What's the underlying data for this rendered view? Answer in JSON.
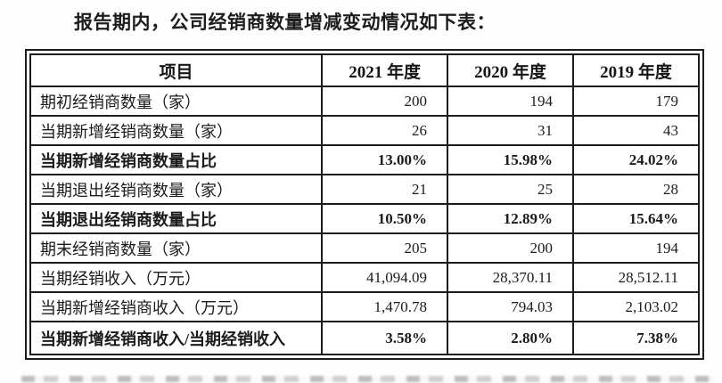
{
  "page": {
    "title": "报告期内，公司经销商数量增减变动情况如下表："
  },
  "table": {
    "columns": [
      "项目",
      "2021 年度",
      "2020 年度",
      "2019 年度"
    ],
    "rows": [
      {
        "label": "期初经销商数量（家）",
        "values": [
          "200",
          "194",
          "179"
        ],
        "bold": false
      },
      {
        "label": "当期新增经销商数量（家）",
        "values": [
          "26",
          "31",
          "43"
        ],
        "bold": false
      },
      {
        "label": "当期新增经销商数量占比",
        "values": [
          "13.00%",
          "15.98%",
          "24.02%"
        ],
        "bold": true
      },
      {
        "label": "当期退出经销商数量（家）",
        "values": [
          "21",
          "25",
          "28"
        ],
        "bold": false
      },
      {
        "label": "当期退出经销商数量占比",
        "values": [
          "10.50%",
          "12.89%",
          "15.64%"
        ],
        "bold": true
      },
      {
        "label": "期末经销商数量（家）",
        "values": [
          "205",
          "200",
          "194"
        ],
        "bold": false
      },
      {
        "label": "当期经销收入（万元）",
        "values": [
          "41,094.09",
          "28,370.11",
          "28,512.11"
        ],
        "bold": false
      },
      {
        "label": "当期新增经销商收入（万元）",
        "values": [
          "1,470.78",
          "794.03",
          "2,103.02"
        ],
        "bold": false
      },
      {
        "label": "当期新增经销商收入/当期经销收入",
        "values": [
          "3.58%",
          "2.80%",
          "7.38%"
        ],
        "bold": true
      }
    ]
  },
  "colors": {
    "text": "#1b1b1b",
    "border": "#1c1c1c",
    "background": "#ffffff",
    "artifact_gray": "#8d8d8d"
  }
}
